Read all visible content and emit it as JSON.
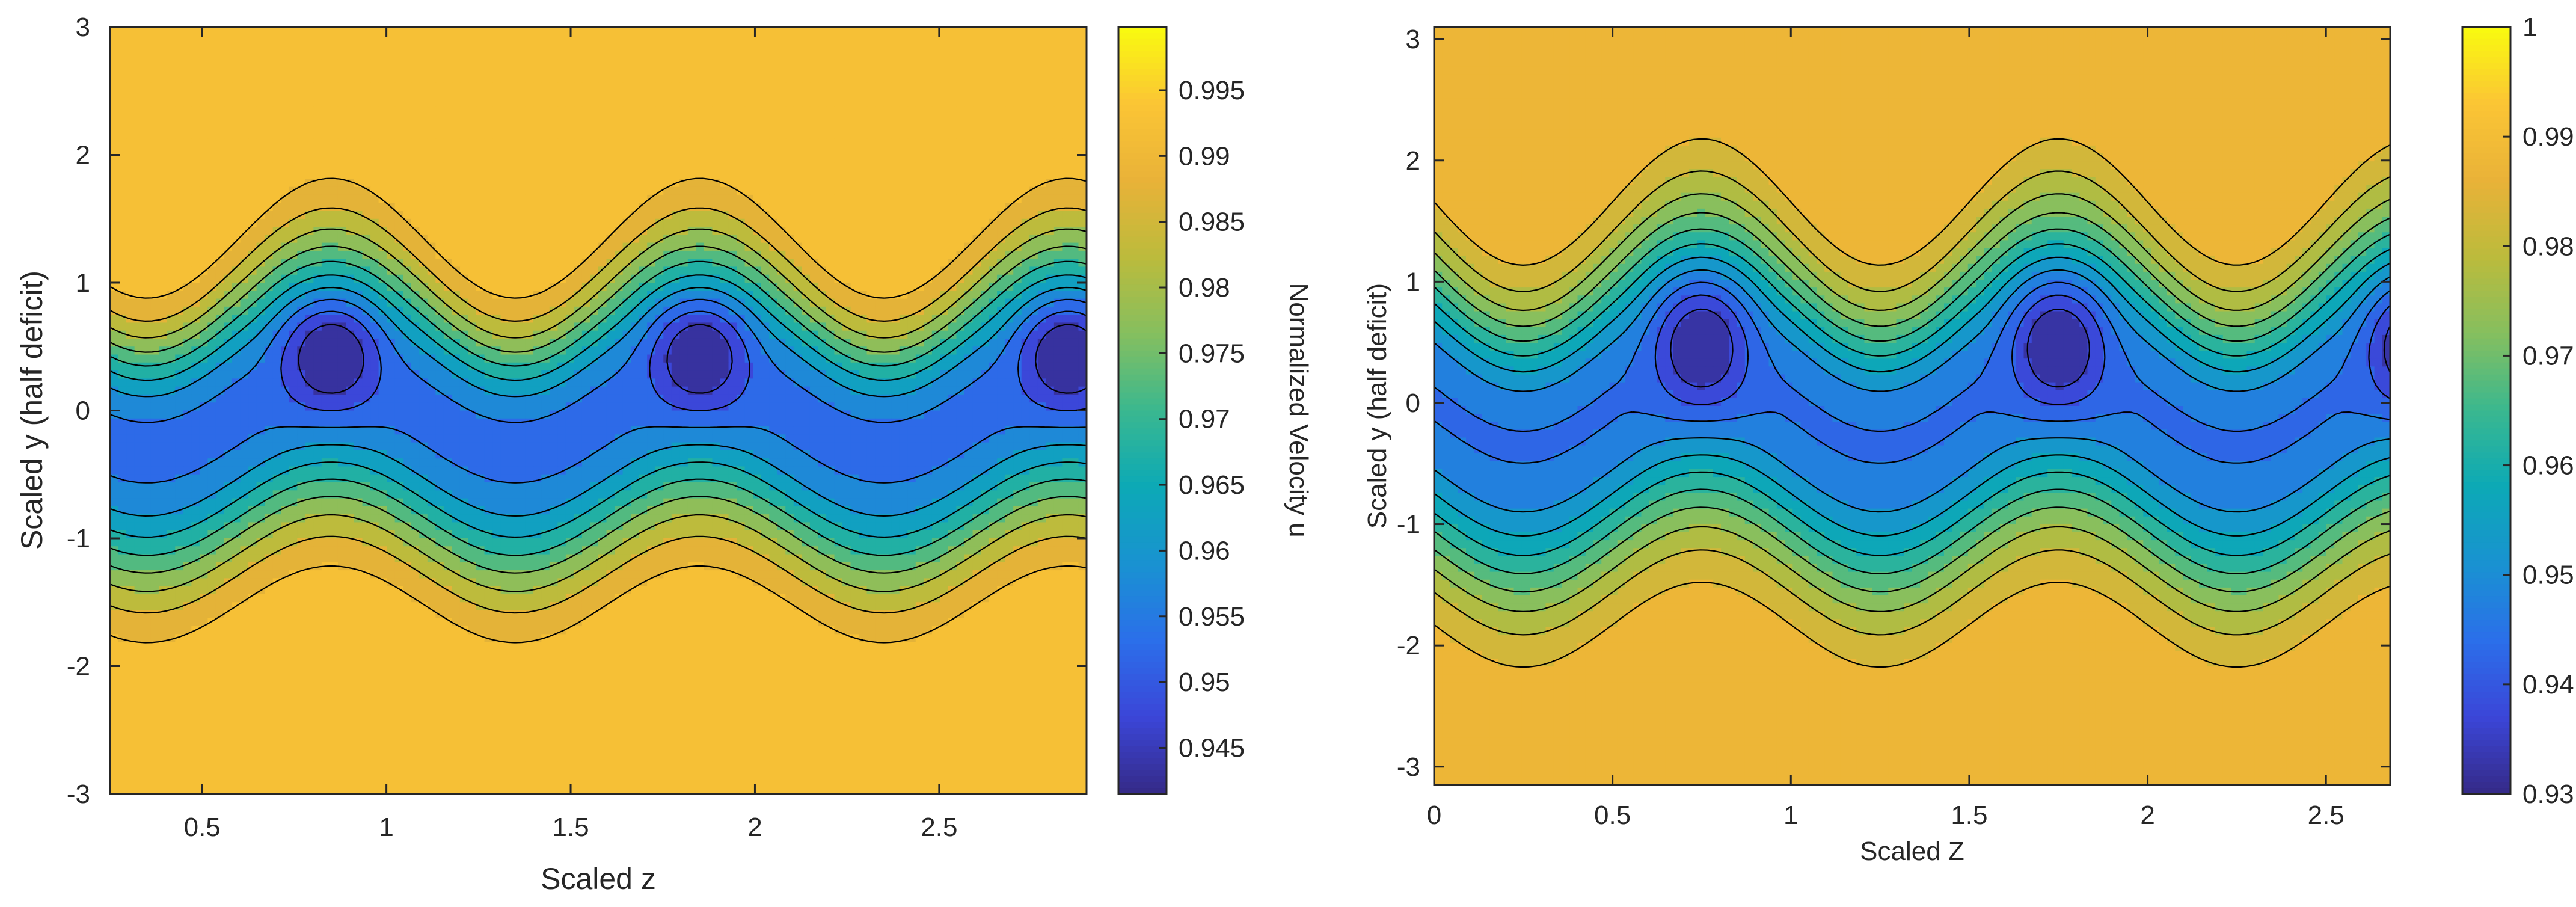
{
  "colors": {
    "parula": [
      "#352a87",
      "#3b46d8",
      "#2b6fea",
      "#1992d1",
      "#0ca9b6",
      "#3ab88f",
      "#85bf5f",
      "#bcbb3c",
      "#e9b238",
      "#fbc535",
      "#f9fb0e"
    ],
    "axes": "#262626",
    "contour_line": "#000000"
  },
  "chart_data": [
    {
      "type": "contour",
      "title": "",
      "xlabel": "Scaled z",
      "ylabel": "Scaled y (half deficit)",
      "xlim": [
        0.25,
        2.9
      ],
      "ylim": [
        -3,
        3
      ],
      "xticks": [
        0.5,
        1,
        1.5,
        2,
        2.5
      ],
      "xtick_labels": [
        "0.5",
        "1",
        "1.5",
        "2",
        "2.5"
      ],
      "yticks": [
        -3,
        -2,
        -1,
        0,
        1,
        2,
        3
      ],
      "ytick_labels": [
        "-3",
        "-2",
        "-1",
        "0",
        "1",
        "2",
        "3"
      ],
      "field": "Normalized Velocity u",
      "wake": {
        "core_min": 0.942,
        "freestream": 0.995,
        "wavelength": 1.0,
        "first_peak_z": 0.85,
        "center_y": 0.0,
        "center_amplitude": 0.3,
        "upper_half_width": 1.2,
        "lower_half_width": 1.35,
        "core_y": 0.45,
        "core_half_height": 0.45
      },
      "levels": [
        0.945,
        0.95,
        0.955,
        0.96,
        0.965,
        0.97,
        0.975,
        0.98,
        0.985,
        0.99,
        0.995
      ],
      "colorbar": {
        "label": "Normalized Velocity u",
        "clim": [
          0.9415,
          0.9998
        ],
        "ticks": [
          0.945,
          0.95,
          0.955,
          0.96,
          0.965,
          0.97,
          0.975,
          0.98,
          0.985,
          0.99,
          0.995
        ],
        "tick_labels": [
          "0.945",
          "0.95",
          "0.955",
          "0.96",
          "0.965",
          "0.97",
          "0.975",
          "0.98",
          "0.985",
          "0.99",
          "0.995"
        ]
      }
    },
    {
      "type": "contour",
      "title": "",
      "xlabel": "Scaled Z",
      "ylabel": "Scaled y (half deficit)",
      "xlim": [
        0,
        2.68
      ],
      "ylim": [
        -3.15,
        3.1
      ],
      "xticks": [
        0,
        0.5,
        1,
        1.5,
        2,
        2.5
      ],
      "xtick_labels": [
        "0",
        "0.5",
        "1",
        "1.5",
        "2",
        "2.5"
      ],
      "yticks": [
        -3,
        -2,
        -1,
        0,
        1,
        2,
        3
      ],
      "ytick_labels": [
        "-3",
        "-2",
        "-1",
        "0",
        "1",
        "2",
        "3"
      ],
      "field": "",
      "wake": {
        "core_min": 0.932,
        "freestream": 0.99,
        "wavelength": 1.0,
        "first_peak_z": 0.75,
        "center_y": 0.0,
        "center_amplitude": 0.35,
        "upper_half_width": 1.45,
        "lower_half_width": 1.6,
        "core_y": 0.5,
        "core_half_height": 0.55
      },
      "levels": [
        0.935,
        0.94,
        0.945,
        0.95,
        0.955,
        0.96,
        0.965,
        0.97,
        0.975,
        0.98,
        0.985,
        0.99
      ],
      "colorbar": {
        "label": "",
        "clim": [
          0.93,
          1.0
        ],
        "ticks": [
          0.93,
          0.94,
          0.95,
          0.96,
          0.97,
          0.98,
          0.99,
          1.0
        ],
        "tick_labels": [
          "0.93",
          "0.94",
          "0.95",
          "0.96",
          "0.97",
          "0.98",
          "0.99",
          "1"
        ]
      }
    }
  ]
}
